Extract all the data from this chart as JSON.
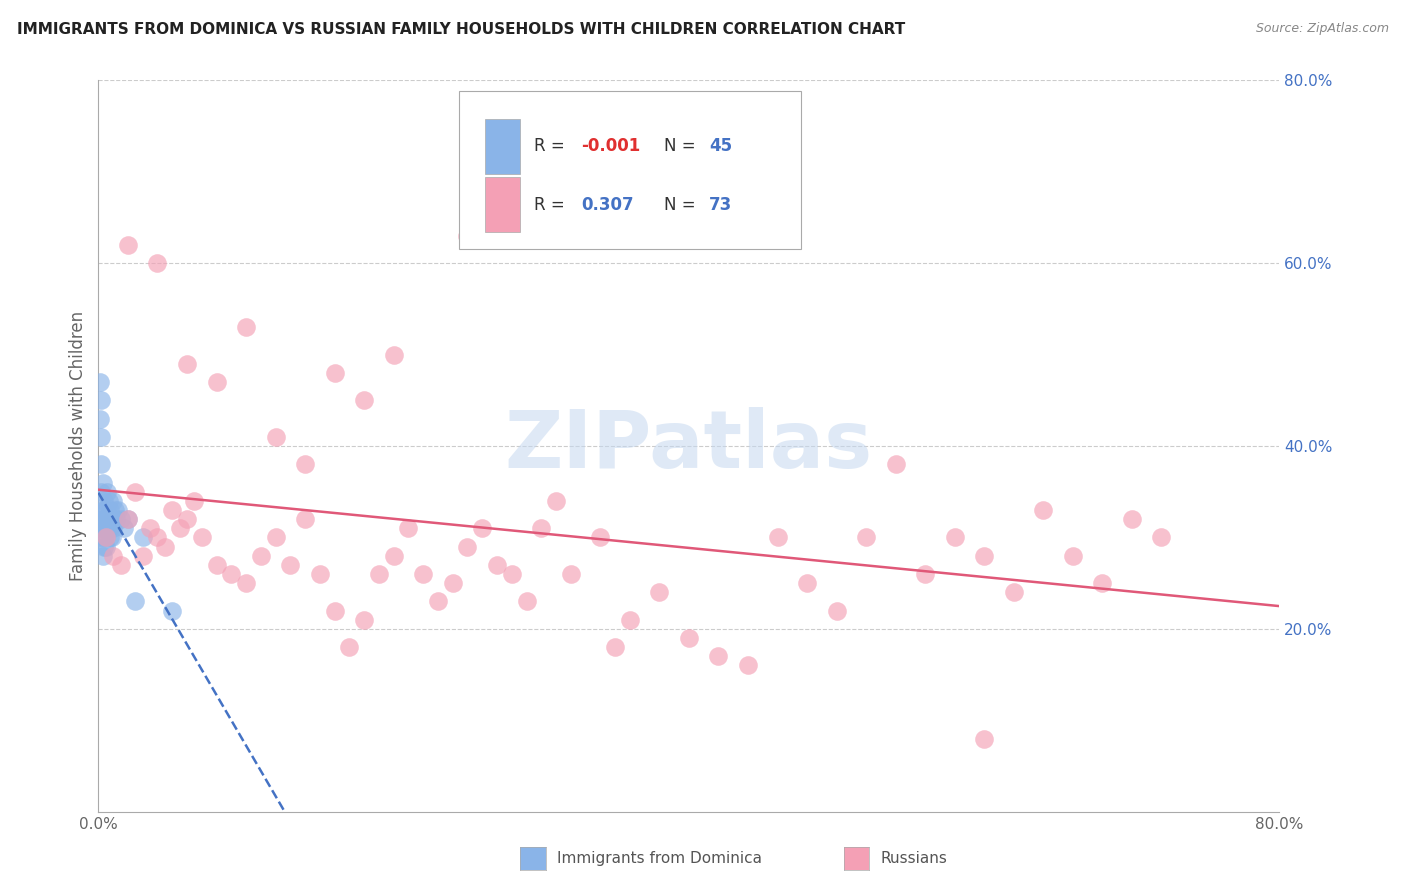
{
  "title": "IMMIGRANTS FROM DOMINICA VS RUSSIAN FAMILY HOUSEHOLDS WITH CHILDREN CORRELATION CHART",
  "source": "Source: ZipAtlas.com",
  "ylabel": "Family Households with Children",
  "xlim": [
    0.0,
    0.8
  ],
  "ylim": [
    0.0,
    0.8
  ],
  "dominica_color": "#8ab4e8",
  "dominica_line_color": "#4472c4",
  "russian_color": "#f4a0b5",
  "russian_line_color": "#e05878",
  "dom_r": "-0.001",
  "dom_n": "45",
  "rus_r": "0.307",
  "rus_n": "73",
  "dom_x": [
    0.001,
    0.001,
    0.002,
    0.002,
    0.002,
    0.003,
    0.003,
    0.003,
    0.004,
    0.004,
    0.004,
    0.005,
    0.005,
    0.005,
    0.006,
    0.006,
    0.007,
    0.007,
    0.008,
    0.008,
    0.009,
    0.01,
    0.01,
    0.011,
    0.012,
    0.013,
    0.015,
    0.017,
    0.02,
    0.025,
    0.001,
    0.002,
    0.003,
    0.004,
    0.005,
    0.006,
    0.007,
    0.008,
    0.009,
    0.01,
    0.002,
    0.003,
    0.004,
    0.03,
    0.05
  ],
  "dom_y": [
    0.47,
    0.43,
    0.41,
    0.38,
    0.35,
    0.36,
    0.33,
    0.31,
    0.34,
    0.32,
    0.3,
    0.33,
    0.31,
    0.29,
    0.35,
    0.32,
    0.34,
    0.31,
    0.33,
    0.3,
    0.32,
    0.34,
    0.31,
    0.33,
    0.32,
    0.33,
    0.32,
    0.31,
    0.32,
    0.23,
    0.3,
    0.31,
    0.32,
    0.33,
    0.3,
    0.31,
    0.32,
    0.31,
    0.3,
    0.32,
    0.45,
    0.28,
    0.29,
    0.3,
    0.22
  ],
  "rus_x": [
    0.005,
    0.01,
    0.015,
    0.02,
    0.025,
    0.03,
    0.035,
    0.04,
    0.045,
    0.05,
    0.055,
    0.06,
    0.065,
    0.07,
    0.08,
    0.09,
    0.1,
    0.11,
    0.12,
    0.13,
    0.14,
    0.15,
    0.16,
    0.17,
    0.18,
    0.19,
    0.2,
    0.21,
    0.22,
    0.23,
    0.24,
    0.25,
    0.26,
    0.27,
    0.28,
    0.29,
    0.3,
    0.31,
    0.32,
    0.34,
    0.35,
    0.36,
    0.38,
    0.4,
    0.42,
    0.44,
    0.46,
    0.48,
    0.5,
    0.52,
    0.54,
    0.56,
    0.58,
    0.6,
    0.62,
    0.64,
    0.66,
    0.68,
    0.7,
    0.72,
    0.02,
    0.04,
    0.06,
    0.08,
    0.1,
    0.12,
    0.14,
    0.16,
    0.18,
    0.2,
    0.25,
    0.3,
    0.6
  ],
  "rus_y": [
    0.3,
    0.28,
    0.27,
    0.32,
    0.35,
    0.28,
    0.31,
    0.3,
    0.29,
    0.33,
    0.31,
    0.32,
    0.34,
    0.3,
    0.27,
    0.26,
    0.25,
    0.28,
    0.3,
    0.27,
    0.32,
    0.26,
    0.22,
    0.18,
    0.21,
    0.26,
    0.28,
    0.31,
    0.26,
    0.23,
    0.25,
    0.29,
    0.31,
    0.27,
    0.26,
    0.23,
    0.31,
    0.34,
    0.26,
    0.3,
    0.18,
    0.21,
    0.24,
    0.19,
    0.17,
    0.16,
    0.3,
    0.25,
    0.22,
    0.3,
    0.38,
    0.26,
    0.3,
    0.28,
    0.24,
    0.33,
    0.28,
    0.25,
    0.32,
    0.3,
    0.62,
    0.6,
    0.49,
    0.47,
    0.53,
    0.41,
    0.38,
    0.48,
    0.45,
    0.5,
    0.63,
    0.65,
    0.08
  ]
}
